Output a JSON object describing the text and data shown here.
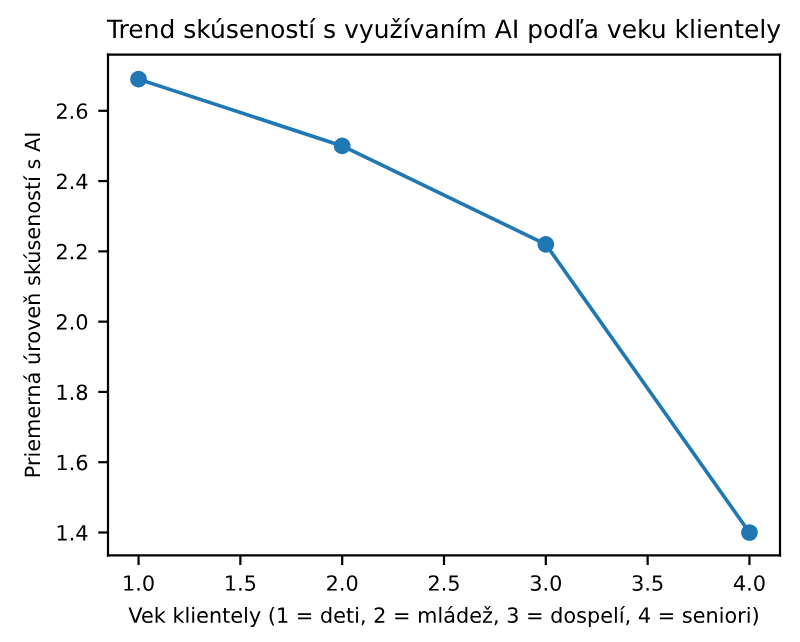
{
  "chart_data": {
    "type": "line",
    "title": "Trend skúseností s využívaním AI podľa veku klientely",
    "xlabel": "Vek klientely (1 = deti, 2 = mládež, 3 = dospelí, 4 = seniori)",
    "ylabel": "Priemerná úroveň skúseností s AI",
    "x": [
      1,
      2,
      3,
      4
    ],
    "series": [
      {
        "color": "#1f77b4",
        "values": [
          2.69,
          2.5,
          2.22,
          1.4
        ]
      }
    ],
    "xlim": [
      0.85,
      4.15
    ],
    "xticks": [
      {
        "value": 1,
        "label": "1.0"
      },
      1.5,
      {
        "value": 2,
        "label": "2.0"
      },
      2.5,
      {
        "value": 3,
        "label": "3.0"
      },
      3.5,
      {
        "value": 4,
        "label": "4.0"
      }
    ],
    "ylim": [
      1.335,
      2.76
    ],
    "yticks": [
      1.4,
      1.6,
      1.8,
      {
        "value": 2,
        "label": "2.0"
      },
      2.2,
      2.4,
      2.6
    ],
    "marker": "circle",
    "line_style": "solid",
    "grid": false,
    "legend": false
  }
}
